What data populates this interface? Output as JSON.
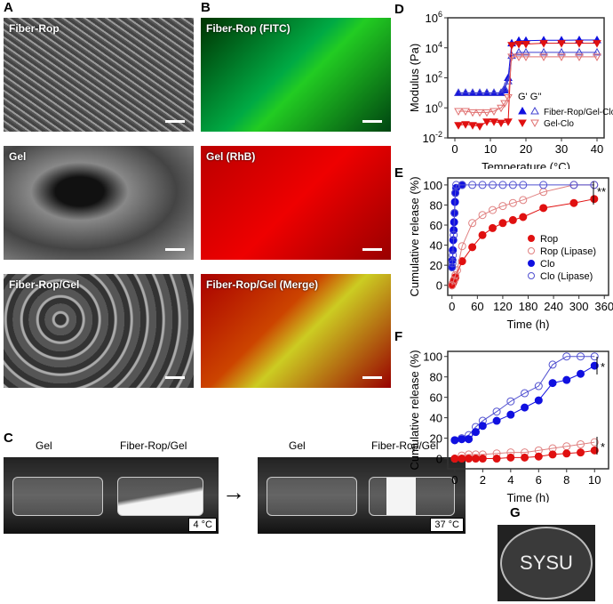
{
  "panels": {
    "A": "A",
    "B": "B",
    "C": "C",
    "D": "D",
    "E": "E",
    "F": "F",
    "G": "G"
  },
  "images": {
    "a1": "Fiber-Rop",
    "a2": "Gel",
    "a3": "Fiber-Rop/Gel",
    "b1": "Fiber-Rop (FITC)",
    "b2": "Gel (RhB)",
    "b3": "Fiber-Rop/Gel (Merge)"
  },
  "photos": {
    "left_gel": "Gel",
    "left_fiber": "Fiber-Rop/Gel",
    "left_temp": "4 °C",
    "right_gel": "Gel",
    "right_fiber": "Fiber-Rop/Gel",
    "right_temp": "37 °C",
    "arrow": "→",
    "dish_text": "SYSU"
  },
  "colors": {
    "blue": "#1010e0",
    "red": "#e01010",
    "lightblue": "#6060d0",
    "pink": "#e08080"
  },
  "chart_data": [
    {
      "id": "D",
      "type": "scatter",
      "xlabel": "Temperature (°C)",
      "ylabel": "Modulus (Pa)",
      "yscale": "log",
      "xlim": [
        -2,
        42
      ],
      "ylim": [
        0.01,
        1000000
      ],
      "xticks": [
        0,
        10,
        20,
        30,
        40
      ],
      "yticks": [
        {
          "v": 0.01,
          "l": "10",
          "e": "-2"
        },
        {
          "v": 1,
          "l": "10",
          "e": "0"
        },
        {
          "v": 100,
          "l": "10",
          "e": "2"
        },
        {
          "v": 10000,
          "l": "10",
          "e": "4"
        },
        {
          "v": 1000000,
          "l": "10",
          "e": "6"
        }
      ],
      "legend_header": [
        "G'",
        "G''"
      ],
      "series": [
        {
          "name": "Fiber-Rop/Gel-Clo",
          "modulus": "G'",
          "marker": "tri-up",
          "fill": true,
          "color": "#1010e0",
          "x": [
            1,
            3,
            5,
            7,
            9,
            11,
            13,
            14,
            15,
            16,
            18,
            20,
            25,
            30,
            35,
            40
          ],
          "y": [
            10,
            10,
            10,
            10,
            10,
            10,
            10,
            15,
            100,
            20000,
            30000,
            30000,
            32000,
            32000,
            33000,
            33000
          ]
        },
        {
          "name": "Fiber-Rop/Gel-Clo",
          "modulus": "G''",
          "marker": "tri-up",
          "fill": false,
          "color": "#4040d0",
          "x": [
            1,
            3,
            5,
            7,
            9,
            11,
            13,
            14,
            15,
            16,
            18,
            20,
            25,
            30,
            35,
            40
          ],
          "y": [
            10,
            10,
            10,
            10,
            10,
            10,
            10,
            20,
            60,
            3000,
            5000,
            5000,
            5000,
            5000,
            5000,
            5000
          ]
        },
        {
          "name": "Gel-Clo",
          "modulus": "G'",
          "marker": "tri-down",
          "fill": true,
          "color": "#e01010",
          "x": [
            1,
            3,
            5,
            7,
            9,
            11,
            13,
            15,
            16,
            18,
            20,
            25,
            30,
            35,
            40
          ],
          "y": [
            0.07,
            0.08,
            0.07,
            0.06,
            0.12,
            0.12,
            0.1,
            0.12,
            15000,
            18000,
            18000,
            20000,
            20000,
            20000,
            20000
          ]
        },
        {
          "name": "Gel-Clo",
          "modulus": "G''",
          "marker": "tri-down",
          "fill": false,
          "color": "#e07070",
          "x": [
            1,
            3,
            5,
            7,
            9,
            11,
            13,
            14,
            15,
            16,
            18,
            20,
            25,
            30,
            35,
            40
          ],
          "y": [
            0.6,
            0.6,
            0.5,
            0.5,
            0.5,
            0.6,
            1,
            2,
            5,
            2500,
            2500,
            2500,
            2500,
            2500,
            2500,
            2500
          ]
        }
      ]
    },
    {
      "id": "E",
      "type": "line",
      "xlabel": "Time (h)",
      "ylabel": "Cumulative release (%)",
      "xlim": [
        -10,
        370
      ],
      "ylim": [
        -10,
        107
      ],
      "xticks": [
        0,
        60,
        120,
        180,
        240,
        300,
        360
      ],
      "yticks": [
        0,
        20,
        40,
        60,
        80,
        100
      ],
      "annotation": "**",
      "series": [
        {
          "name": "Rop",
          "fill": true,
          "color": "#e01010",
          "x": [
            0,
            2,
            4,
            6,
            8,
            24,
            48,
            72,
            96,
            120,
            144,
            168,
            216,
            288,
            336
          ],
          "y": [
            0,
            2,
            4,
            6,
            8,
            24,
            38,
            50,
            57,
            62,
            65,
            68,
            77,
            82,
            86
          ]
        },
        {
          "name": "Rop (Lipase)",
          "fill": false,
          "color": "#e08080",
          "x": [
            0,
            4,
            8,
            12,
            24,
            48,
            72,
            96,
            120,
            144,
            168,
            216,
            288,
            336
          ],
          "y": [
            0,
            5,
            10,
            15,
            39,
            62,
            70,
            75,
            79,
            82,
            85,
            93,
            100,
            100
          ]
        },
        {
          "name": "Clo",
          "fill": true,
          "color": "#1010e0",
          "x": [
            0,
            1,
            2,
            3,
            4,
            5,
            6,
            7,
            8,
            10,
            24
          ],
          "y": [
            18,
            25,
            35,
            45,
            55,
            63,
            72,
            83,
            92,
            97,
            100
          ]
        },
        {
          "name": "Clo (Lipase)",
          "fill": false,
          "color": "#5050d0",
          "x": [
            0,
            1,
            2,
            4,
            6,
            8,
            10,
            24,
            48,
            72,
            96,
            120,
            144,
            168,
            216,
            288,
            336
          ],
          "y": [
            18,
            22,
            30,
            50,
            72,
            92,
            100,
            100,
            100,
            100,
            100,
            100,
            100,
            100,
            100,
            100,
            100
          ]
        }
      ]
    },
    {
      "id": "F",
      "type": "line",
      "xlabel": "Time (h)",
      "ylabel": "Cumulative release (%)",
      "xlim": [
        -0.5,
        11
      ],
      "ylim": [
        -10,
        105
      ],
      "xticks": [
        0,
        2,
        4,
        6,
        8,
        10
      ],
      "yticks": [
        0,
        20,
        40,
        60,
        80,
        100
      ],
      "annotations": [
        "*",
        "*"
      ],
      "series": [
        {
          "name": "Clo (Lipase)",
          "fill": false,
          "color": "#5050d0",
          "x": [
            0,
            0.5,
            1,
            1.5,
            2,
            3,
            4,
            5,
            6,
            7,
            8,
            9,
            10
          ],
          "y": [
            18,
            20,
            23,
            31,
            37,
            46,
            56,
            64,
            71,
            92,
            100,
            100,
            100
          ]
        },
        {
          "name": "Clo",
          "fill": true,
          "color": "#1010e0",
          "x": [
            0,
            0.5,
            1,
            1.5,
            2,
            3,
            4,
            5,
            6,
            7,
            8,
            9,
            10
          ],
          "y": [
            18,
            19,
            19,
            26,
            32,
            37,
            43,
            50,
            57,
            74,
            77,
            83,
            91
          ]
        },
        {
          "name": "Rop (Lipase)",
          "fill": false,
          "color": "#e08080",
          "x": [
            0,
            0.5,
            1,
            1.5,
            2,
            3,
            4,
            5,
            6,
            7,
            8,
            9,
            10
          ],
          "y": [
            0,
            3,
            4,
            4,
            4,
            5,
            6,
            6,
            8,
            10,
            12,
            14,
            16
          ]
        },
        {
          "name": "Rop",
          "fill": true,
          "color": "#e01010",
          "x": [
            0,
            0.5,
            1,
            1.5,
            2,
            3,
            4,
            5,
            6,
            7,
            8,
            9,
            10
          ],
          "y": [
            0,
            0,
            0,
            0,
            0,
            0,
            1,
            1,
            2,
            4,
            5,
            6,
            8
          ]
        }
      ]
    }
  ]
}
